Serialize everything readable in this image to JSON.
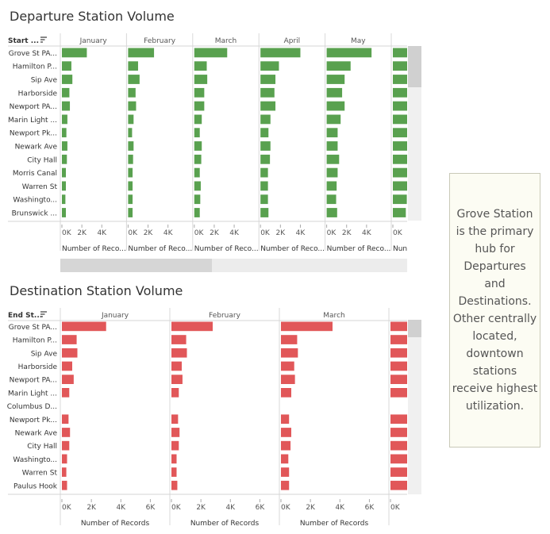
{
  "panels": [
    {
      "title": "Departure Station Volume",
      "row_header": "Start ...",
      "color": "#59a14f",
      "months": [
        "January",
        "February",
        "March",
        "April",
        "May",
        ""
      ],
      "stations": [
        "Grove St PA...",
        "Hamilton P...",
        "Sip Ave",
        "Harborside",
        "Newport PA...",
        "Marin Light ...",
        "Newport Pk...",
        "Newark Ave",
        "City Hall",
        "Morris Canal",
        "Warren St",
        "Washingto...",
        "Brunswick ..."
      ],
      "axis_ticks": [
        "0K",
        "2K",
        "4K"
      ],
      "axis_ticks_last": [
        "0K"
      ],
      "axis_max": 6000,
      "axis_label": "Number of Reco...",
      "axis_label_last": "Nun",
      "values": [
        [
          2500,
          950,
          1050,
          750,
          800,
          550,
          450,
          550,
          500,
          400,
          400,
          350,
          400
        ],
        [
          2600,
          1000,
          1150,
          750,
          800,
          550,
          400,
          550,
          500,
          450,
          450,
          450,
          450
        ],
        [
          3300,
          1250,
          1300,
          1000,
          1000,
          750,
          550,
          750,
          700,
          550,
          650,
          600,
          550
        ],
        [
          4000,
          1850,
          1500,
          1400,
          1500,
          1000,
          800,
          1000,
          950,
          750,
          750,
          750,
          800
        ],
        [
          4500,
          2400,
          1800,
          1550,
          1800,
          1400,
          1100,
          1100,
          1250,
          1100,
          1000,
          950,
          1050
        ],
        [
          3200,
          2400,
          2100,
          1800,
          1800,
          1600,
          1600,
          1500,
          1500,
          1500,
          1500,
          1400,
          1300
        ]
      ]
    },
    {
      "title": "Destination Station Volume",
      "row_header": "End St...",
      "color": "#e15759",
      "months": [
        "January",
        "February",
        "March",
        ""
      ],
      "stations": [
        "Grove St PA...",
        "Hamilton P...",
        "Sip Ave",
        "Harborside",
        "Newport PA...",
        "Marin Light ...",
        "Columbus D...",
        "Newport Pk...",
        "Newark Ave",
        "City Hall",
        "Washingto...",
        "Warren St",
        "Paulus Hook"
      ],
      "axis_ticks": [
        "0K",
        "2K",
        "4K",
        "6K"
      ],
      "axis_ticks_last": [
        "0K"
      ],
      "axis_max": 7000,
      "axis_label": "Number of Records",
      "axis_label_last": "",
      "values": [
        [
          3000,
          1000,
          1050,
          700,
          800,
          500,
          0,
          450,
          550,
          500,
          350,
          300,
          350
        ],
        [
          2800,
          1000,
          1050,
          700,
          750,
          500,
          0,
          450,
          550,
          500,
          350,
          350,
          400
        ],
        [
          3500,
          1100,
          1150,
          900,
          950,
          700,
          0,
          550,
          700,
          650,
          500,
          550,
          550
        ],
        [
          4000,
          4000,
          4000,
          4000,
          4000,
          2800,
          0,
          3000,
          3000,
          3000,
          2600,
          2200,
          2200
        ]
      ]
    }
  ],
  "annotation": "Grove Station is the primary hub for Departures and Destinations. Other centrally located, downtown stations receive highest utilization."
}
